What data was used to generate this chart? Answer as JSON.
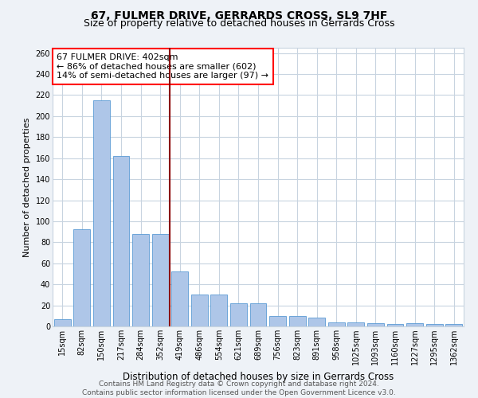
{
  "title": "67, FULMER DRIVE, GERRARDS CROSS, SL9 7HF",
  "subtitle": "Size of property relative to detached houses in Gerrards Cross",
  "xlabel": "Distribution of detached houses by size in Gerrards Cross",
  "ylabel": "Number of detached properties",
  "categories": [
    "15sqm",
    "82sqm",
    "150sqm",
    "217sqm",
    "284sqm",
    "352sqm",
    "419sqm",
    "486sqm",
    "554sqm",
    "621sqm",
    "689sqm",
    "756sqm",
    "823sqm",
    "891sqm",
    "958sqm",
    "1025sqm",
    "1093sqm",
    "1160sqm",
    "1227sqm",
    "1295sqm",
    "1362sqm"
  ],
  "values": [
    7,
    92,
    215,
    162,
    88,
    88,
    52,
    30,
    30,
    22,
    22,
    10,
    10,
    8,
    4,
    4,
    3,
    2,
    3,
    2,
    2
  ],
  "bar_color": "#aec6e8",
  "bar_edge_color": "#5b9bd5",
  "vline_x_index": 6,
  "vline_color": "#8b0000",
  "annotation_text": "67 FULMER DRIVE: 402sqm\n← 86% of detached houses are smaller (602)\n14% of semi-detached houses are larger (97) →",
  "annotation_box_color": "white",
  "annotation_box_edge": "red",
  "ylim": [
    0,
    265
  ],
  "yticks": [
    0,
    20,
    40,
    60,
    80,
    100,
    120,
    140,
    160,
    180,
    200,
    220,
    240,
    260
  ],
  "footer_text": "Contains HM Land Registry data © Crown copyright and database right 2024.\nContains public sector information licensed under the Open Government Licence v3.0.",
  "background_color": "#eef2f7",
  "plot_background_color": "#ffffff",
  "grid_color": "#c8d4e0",
  "title_fontsize": 10,
  "subtitle_fontsize": 9,
  "xlabel_fontsize": 8.5,
  "ylabel_fontsize": 8,
  "tick_fontsize": 7,
  "annotation_fontsize": 8,
  "footer_fontsize": 6.5
}
